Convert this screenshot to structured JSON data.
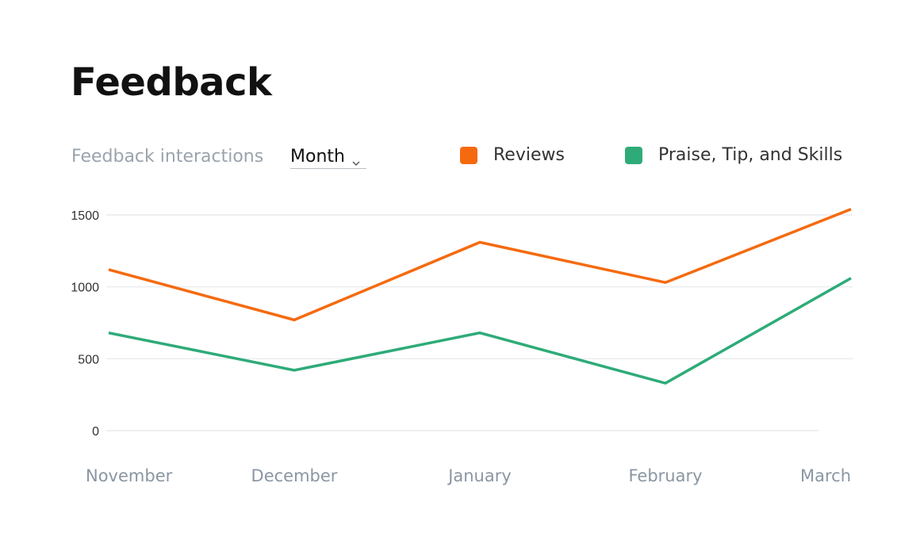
{
  "header": {
    "title": "Feedback"
  },
  "controls": {
    "label": "Feedback interactions",
    "period_value": "Month",
    "period_icon": "chevron-down-icon"
  },
  "colors": {
    "reviews": "#f56a0f",
    "praise": "#2eab78",
    "grid": "#e6e8ea",
    "tick_y": "#333333",
    "tick_x": "#8a96a3"
  },
  "chart_data": {
    "type": "line",
    "categories": [
      "November",
      "December",
      "January",
      "February",
      "March"
    ],
    "series": [
      {
        "name": "Reviews",
        "color": "#f56a0f",
        "values": [
          1120,
          770,
          1310,
          1030,
          1540
        ]
      },
      {
        "name": "Praise, Tip, and Skills",
        "color": "#2eab78",
        "values": [
          680,
          420,
          680,
          330,
          1060
        ]
      }
    ],
    "yticks": [
      0,
      500,
      1000,
      1500
    ],
    "ylim": [
      0,
      1500
    ],
    "grid": true,
    "legend_position": "top-right",
    "title": "",
    "xlabel": "",
    "ylabel": ""
  }
}
